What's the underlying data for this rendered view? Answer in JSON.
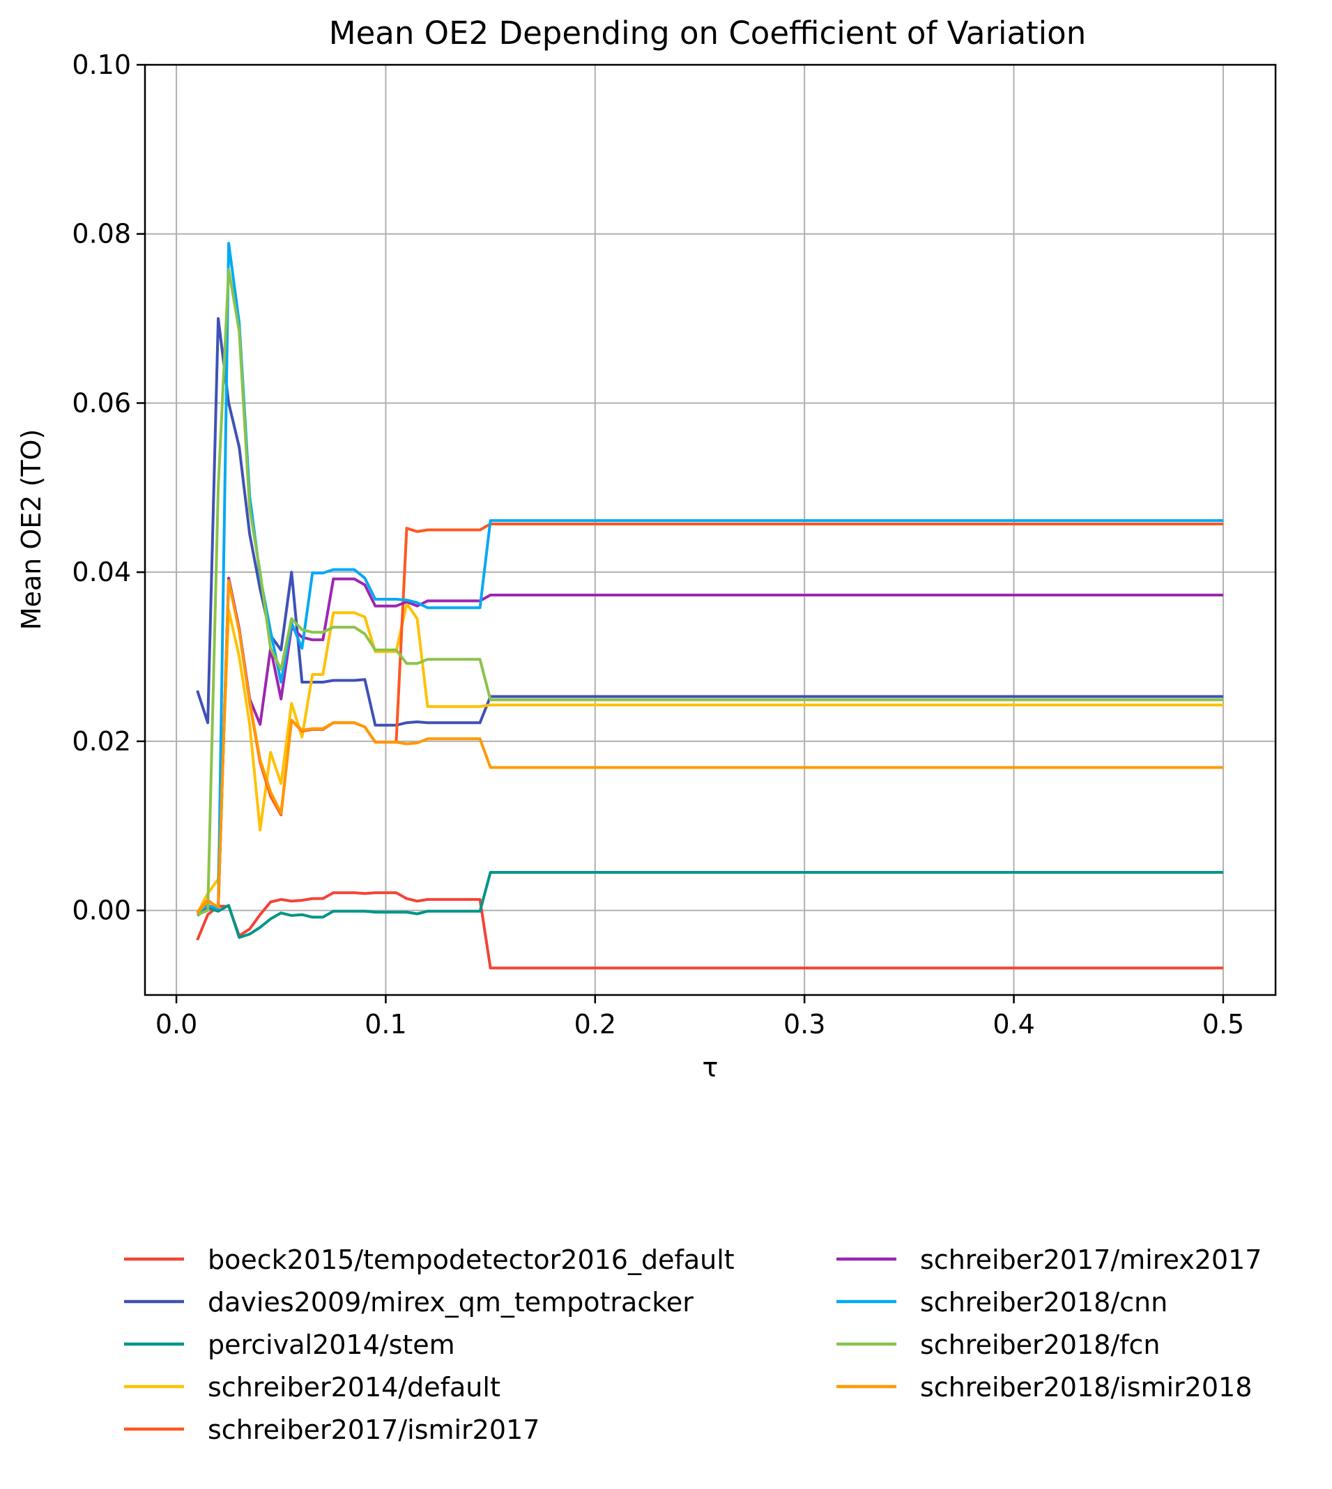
{
  "chart_data": {
    "type": "line",
    "title": "Mean OE2 Depending on Coefficient of Variation",
    "xlabel": "τ",
    "ylabel": "Mean OE2 (TO)",
    "xlim": [
      -0.015,
      0.525
    ],
    "ylim": [
      -0.01,
      0.1
    ],
    "xticks": [
      0.0,
      0.1,
      0.2,
      0.3,
      0.4,
      0.5
    ],
    "xtick_labels": [
      "0.0",
      "0.1",
      "0.2",
      "0.3",
      "0.4",
      "0.5"
    ],
    "yticks": [
      0.0,
      0.02,
      0.04,
      0.06,
      0.08,
      0.1
    ],
    "ytick_labels": [
      "0.00",
      "0.02",
      "0.04",
      "0.06",
      "0.08",
      "0.10"
    ],
    "grid": true,
    "legend_position": "bottom, two columns",
    "series": [
      {
        "name": "boeck2015/tempodetector2016_default",
        "color": "#f44336",
        "points": [
          [
            0.01,
            -0.0035
          ],
          [
            0.015,
            -0.0005
          ],
          [
            0.02,
            0.0005
          ],
          [
            0.025,
            0.0005
          ],
          [
            0.03,
            -0.003
          ],
          [
            0.035,
            -0.0022
          ],
          [
            0.04,
            -0.0005
          ],
          [
            0.045,
            0.001
          ],
          [
            0.05,
            0.0013
          ],
          [
            0.055,
            0.0011
          ],
          [
            0.06,
            0.0012
          ],
          [
            0.065,
            0.0014
          ],
          [
            0.07,
            0.0014
          ],
          [
            0.075,
            0.0021
          ],
          [
            0.08,
            0.0021
          ],
          [
            0.085,
            0.0021
          ],
          [
            0.09,
            0.002
          ],
          [
            0.095,
            0.0021
          ],
          [
            0.1,
            0.0021
          ],
          [
            0.105,
            0.0021
          ],
          [
            0.11,
            0.0014
          ],
          [
            0.115,
            0.0011
          ],
          [
            0.12,
            0.0013
          ],
          [
            0.13,
            0.0013
          ],
          [
            0.14,
            0.0013
          ],
          [
            0.145,
            0.0013
          ],
          [
            0.15,
            -0.0068
          ],
          [
            0.5,
            -0.0068
          ]
        ]
      },
      {
        "name": "davies2009/mirex_qm_tempotracker",
        "color": "#3f51b5",
        "points": [
          [
            0.01,
            0.026
          ],
          [
            0.015,
            0.0222
          ],
          [
            0.02,
            0.07
          ],
          [
            0.025,
            0.06
          ],
          [
            0.03,
            0.0548
          ],
          [
            0.035,
            0.0445
          ],
          [
            0.04,
            0.038
          ],
          [
            0.045,
            0.0325
          ],
          [
            0.05,
            0.0308
          ],
          [
            0.055,
            0.04
          ],
          [
            0.06,
            0.027
          ],
          [
            0.065,
            0.027
          ],
          [
            0.07,
            0.027
          ],
          [
            0.075,
            0.0272
          ],
          [
            0.08,
            0.0272
          ],
          [
            0.085,
            0.0272
          ],
          [
            0.09,
            0.0273
          ],
          [
            0.095,
            0.0219
          ],
          [
            0.1,
            0.0219
          ],
          [
            0.105,
            0.0219
          ],
          [
            0.11,
            0.0222
          ],
          [
            0.115,
            0.0223
          ],
          [
            0.12,
            0.0222
          ],
          [
            0.13,
            0.0222
          ],
          [
            0.14,
            0.0222
          ],
          [
            0.145,
            0.0222
          ],
          [
            0.15,
            0.0253
          ],
          [
            0.5,
            0.0253
          ]
        ]
      },
      {
        "name": "percival2014/stem",
        "color": "#009688",
        "points": [
          [
            0.01,
            -0.0006
          ],
          [
            0.015,
            0.0003
          ],
          [
            0.02,
            -0.0001
          ],
          [
            0.025,
            0.0006
          ],
          [
            0.03,
            -0.0032
          ],
          [
            0.035,
            -0.0028
          ],
          [
            0.04,
            -0.002
          ],
          [
            0.045,
            -0.001
          ],
          [
            0.05,
            -0.0003
          ],
          [
            0.055,
            -0.0006
          ],
          [
            0.06,
            -0.0005
          ],
          [
            0.065,
            -0.0008
          ],
          [
            0.07,
            -0.0008
          ],
          [
            0.075,
            -0.0001
          ],
          [
            0.08,
            -0.0001
          ],
          [
            0.085,
            -0.0001
          ],
          [
            0.09,
            -0.0001
          ],
          [
            0.095,
            -0.0002
          ],
          [
            0.1,
            -0.0002
          ],
          [
            0.105,
            -0.0002
          ],
          [
            0.11,
            -0.0002
          ],
          [
            0.115,
            -0.0004
          ],
          [
            0.12,
            -0.0001
          ],
          [
            0.13,
            -0.0001
          ],
          [
            0.14,
            -0.0001
          ],
          [
            0.145,
            -0.0001
          ],
          [
            0.15,
            0.0045
          ],
          [
            0.5,
            0.0045
          ]
        ]
      },
      {
        "name": "schreiber2014/default",
        "color": "#ffc107",
        "points": [
          [
            0.01,
            -0.0003
          ],
          [
            0.015,
            0.002
          ],
          [
            0.02,
            0.0037
          ],
          [
            0.025,
            0.0355
          ],
          [
            0.03,
            0.03
          ],
          [
            0.035,
            0.022
          ],
          [
            0.04,
            0.0095
          ],
          [
            0.045,
            0.0187
          ],
          [
            0.05,
            0.015
          ],
          [
            0.055,
            0.0245
          ],
          [
            0.06,
            0.0205
          ],
          [
            0.065,
            0.0279
          ],
          [
            0.07,
            0.0279
          ],
          [
            0.075,
            0.0352
          ],
          [
            0.08,
            0.0352
          ],
          [
            0.085,
            0.0352
          ],
          [
            0.09,
            0.0347
          ],
          [
            0.095,
            0.0306
          ],
          [
            0.1,
            0.0306
          ],
          [
            0.105,
            0.0306
          ],
          [
            0.11,
            0.0363
          ],
          [
            0.115,
            0.0345
          ],
          [
            0.12,
            0.0241
          ],
          [
            0.13,
            0.0241
          ],
          [
            0.14,
            0.0241
          ],
          [
            0.145,
            0.0241
          ],
          [
            0.15,
            0.0243
          ],
          [
            0.5,
            0.0243
          ]
        ]
      },
      {
        "name": "schreiber2017/ismir2017",
        "color": "#ff5722",
        "points": [
          [
            0.01,
            -0.0003
          ],
          [
            0.015,
            0.0012
          ],
          [
            0.02,
            0.0003
          ],
          [
            0.025,
            0.0392
          ],
          [
            0.03,
            0.0332
          ],
          [
            0.035,
            0.0246
          ],
          [
            0.04,
            0.0175
          ],
          [
            0.045,
            0.0135
          ],
          [
            0.05,
            0.0113
          ],
          [
            0.055,
            0.0225
          ],
          [
            0.06,
            0.0212
          ],
          [
            0.065,
            0.0214
          ],
          [
            0.07,
            0.0214
          ],
          [
            0.075,
            0.0222
          ],
          [
            0.08,
            0.0222
          ],
          [
            0.085,
            0.0222
          ],
          [
            0.09,
            0.0217
          ],
          [
            0.095,
            0.0199
          ],
          [
            0.1,
            0.0199
          ],
          [
            0.105,
            0.0199
          ],
          [
            0.11,
            0.0452
          ],
          [
            0.115,
            0.0448
          ],
          [
            0.12,
            0.045
          ],
          [
            0.13,
            0.045
          ],
          [
            0.14,
            0.045
          ],
          [
            0.145,
            0.045
          ],
          [
            0.15,
            0.0457
          ],
          [
            0.5,
            0.0457
          ]
        ]
      },
      {
        "name": "schreiber2017/mirex2017",
        "color": "#9c27b0",
        "points": [
          [
            0.01,
            -0.0003
          ],
          [
            0.015,
            0.0005
          ],
          [
            0.02,
            0.0003
          ],
          [
            0.025,
            0.0393
          ],
          [
            0.03,
            0.0333
          ],
          [
            0.035,
            0.025
          ],
          [
            0.04,
            0.022
          ],
          [
            0.045,
            0.031
          ],
          [
            0.05,
            0.025
          ],
          [
            0.055,
            0.0335
          ],
          [
            0.06,
            0.0323
          ],
          [
            0.065,
            0.032
          ],
          [
            0.07,
            0.032
          ],
          [
            0.075,
            0.0392
          ],
          [
            0.08,
            0.0392
          ],
          [
            0.085,
            0.0392
          ],
          [
            0.09,
            0.0385
          ],
          [
            0.095,
            0.036
          ],
          [
            0.1,
            0.036
          ],
          [
            0.105,
            0.036
          ],
          [
            0.11,
            0.0365
          ],
          [
            0.115,
            0.036
          ],
          [
            0.12,
            0.0366
          ],
          [
            0.13,
            0.0366
          ],
          [
            0.14,
            0.0366
          ],
          [
            0.145,
            0.0366
          ],
          [
            0.15,
            0.0373
          ],
          [
            0.5,
            0.0373
          ]
        ]
      },
      {
        "name": "schreiber2018/cnn",
        "color": "#03a9f4",
        "points": [
          [
            0.01,
            -0.0003
          ],
          [
            0.015,
            0.0006
          ],
          [
            0.02,
            0.0002
          ],
          [
            0.025,
            0.0789
          ],
          [
            0.03,
            0.0695
          ],
          [
            0.035,
            0.049
          ],
          [
            0.04,
            0.0395
          ],
          [
            0.045,
            0.033
          ],
          [
            0.05,
            0.027
          ],
          [
            0.055,
            0.034
          ],
          [
            0.06,
            0.031
          ],
          [
            0.065,
            0.0399
          ],
          [
            0.07,
            0.0399
          ],
          [
            0.075,
            0.0403
          ],
          [
            0.08,
            0.0403
          ],
          [
            0.085,
            0.0403
          ],
          [
            0.09,
            0.0393
          ],
          [
            0.095,
            0.0368
          ],
          [
            0.1,
            0.0368
          ],
          [
            0.105,
            0.0368
          ],
          [
            0.11,
            0.0367
          ],
          [
            0.115,
            0.0364
          ],
          [
            0.12,
            0.0358
          ],
          [
            0.13,
            0.0358
          ],
          [
            0.14,
            0.0358
          ],
          [
            0.145,
            0.0358
          ],
          [
            0.15,
            0.0461
          ],
          [
            0.5,
            0.0461
          ]
        ]
      },
      {
        "name": "schreiber2018/fcn",
        "color": "#8bc34a",
        "points": [
          [
            0.01,
            -0.0005
          ],
          [
            0.015,
            0.0
          ],
          [
            0.02,
            0.05
          ],
          [
            0.025,
            0.0758
          ],
          [
            0.03,
            0.0685
          ],
          [
            0.035,
            0.0475
          ],
          [
            0.04,
            0.04
          ],
          [
            0.045,
            0.031
          ],
          [
            0.05,
            0.0285
          ],
          [
            0.055,
            0.0345
          ],
          [
            0.06,
            0.0332
          ],
          [
            0.065,
            0.0329
          ],
          [
            0.07,
            0.0329
          ],
          [
            0.075,
            0.0335
          ],
          [
            0.08,
            0.0335
          ],
          [
            0.085,
            0.0335
          ],
          [
            0.09,
            0.0327
          ],
          [
            0.095,
            0.0308
          ],
          [
            0.1,
            0.0308
          ],
          [
            0.105,
            0.0308
          ],
          [
            0.11,
            0.0292
          ],
          [
            0.115,
            0.0292
          ],
          [
            0.12,
            0.0297
          ],
          [
            0.13,
            0.0297
          ],
          [
            0.14,
            0.0297
          ],
          [
            0.145,
            0.0297
          ],
          [
            0.15,
            0.0249
          ],
          [
            0.5,
            0.0249
          ]
        ]
      },
      {
        "name": "schreiber2018/ismir2018",
        "color": "#ff9800",
        "points": [
          [
            0.01,
            -0.0003
          ],
          [
            0.015,
            0.0011
          ],
          [
            0.02,
            0.0004
          ],
          [
            0.025,
            0.039
          ],
          [
            0.03,
            0.033
          ],
          [
            0.035,
            0.0247
          ],
          [
            0.04,
            0.0178
          ],
          [
            0.045,
            0.014
          ],
          [
            0.05,
            0.0115
          ],
          [
            0.055,
            0.0225
          ],
          [
            0.06,
            0.0213
          ],
          [
            0.065,
            0.0215
          ],
          [
            0.07,
            0.0215
          ],
          [
            0.075,
            0.0222
          ],
          [
            0.08,
            0.0222
          ],
          [
            0.085,
            0.0222
          ],
          [
            0.09,
            0.0217
          ],
          [
            0.095,
            0.0199
          ],
          [
            0.1,
            0.0199
          ],
          [
            0.105,
            0.0199
          ],
          [
            0.11,
            0.0197
          ],
          [
            0.115,
            0.0198
          ],
          [
            0.12,
            0.0203
          ],
          [
            0.13,
            0.0203
          ],
          [
            0.14,
            0.0203
          ],
          [
            0.145,
            0.0203
          ],
          [
            0.15,
            0.0169
          ],
          [
            0.5,
            0.0169
          ]
        ]
      }
    ]
  }
}
